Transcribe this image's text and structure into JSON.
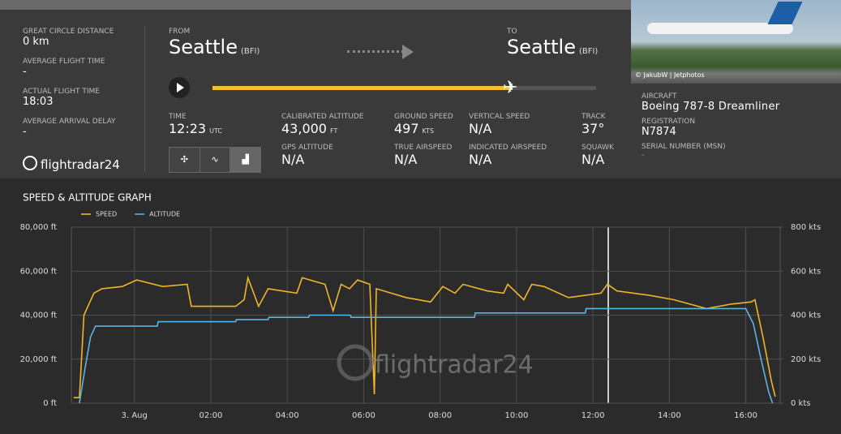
{
  "summary": [
    {
      "label": "GREAT CIRCLE DISTANCE",
      "value": "0 km"
    },
    {
      "label": "AVERAGE FLIGHT TIME",
      "value": "-"
    },
    {
      "label": "ACTUAL FLIGHT TIME",
      "value": "18:03"
    },
    {
      "label": "AVERAGE ARRIVAL DELAY",
      "value": "-"
    }
  ],
  "logo": "flightradar24",
  "route": {
    "from_label": "FROM",
    "from_city": "Seattle",
    "from_code": "(BFI)",
    "to_label": "TO",
    "to_city": "Seattle",
    "to_code": "(BFI)"
  },
  "stats": [
    {
      "label": "TIME",
      "value": "12:23",
      "unit": "UTC"
    },
    {
      "label": "CALIBRATED ALTITUDE",
      "value": "43,000",
      "unit": "FT"
    },
    {
      "label": "GROUND SPEED",
      "value": "497",
      "unit": "KTS"
    },
    {
      "label": "VERTICAL SPEED",
      "value": "N/A"
    },
    {
      "label": "TRACK",
      "value": "37°"
    },
    {
      "label": "GPS ALTITUDE",
      "value": "N/A"
    },
    {
      "label": "TRUE AIRSPEED",
      "value": "N/A"
    },
    {
      "label": "INDICATED AIRSPEED",
      "value": "N/A"
    },
    {
      "label": "SQUAWK",
      "value": "N/A"
    }
  ],
  "aircraft": {
    "photo_credit": "© JakubW | Jetphotos",
    "items": [
      {
        "label": "AIRCRAFT",
        "value": "Boeing 787-8 Dreamliner"
      },
      {
        "label": "REGISTRATION",
        "value": "N7874"
      },
      {
        "label": "SERIAL NUMBER (MSN)",
        "value": "-"
      }
    ]
  },
  "chart_data": {
    "type": "line",
    "title": "SPEED & ALTITUDE GRAPH",
    "watermark": "flightradar24",
    "grid": true,
    "xlim": [
      -1.65,
      16.9
    ],
    "xticks": [
      {
        "value": 0,
        "label": "3. Aug"
      },
      {
        "value": 2,
        "label": "02:00"
      },
      {
        "value": 4,
        "label": "04:00"
      },
      {
        "value": 6,
        "label": "06:00"
      },
      {
        "value": 8,
        "label": "08:00"
      },
      {
        "value": 10,
        "label": "10:00"
      },
      {
        "value": 12,
        "label": "12:00"
      },
      {
        "value": 14,
        "label": "14:00"
      },
      {
        "value": 16,
        "label": "16:00"
      }
    ],
    "ylim": [
      0,
      80000
    ],
    "yticks": [
      {
        "value": 0,
        "label": "0 ft"
      },
      {
        "value": 20000,
        "label": "20,000 ft"
      },
      {
        "value": 40000,
        "label": "40,000 ft"
      },
      {
        "value": 60000,
        "label": "60,000 ft"
      },
      {
        "value": 80000,
        "label": "80,000 ft"
      }
    ],
    "y2lim": [
      0,
      800
    ],
    "y2ticks": [
      {
        "value": 0,
        "label": "0 kts"
      },
      {
        "value": 200,
        "label": "200 kts"
      },
      {
        "value": 400,
        "label": "400 kts"
      },
      {
        "value": 600,
        "label": "600 kts"
      },
      {
        "value": 800,
        "label": "800 kts"
      }
    ],
    "series": [
      {
        "name": "SPEED",
        "color": "#f0b429",
        "axis": "y2",
        "x": [
          -1.59,
          -1.44,
          -1.32,
          -1.06,
          -0.85,
          -0.32,
          0.06,
          0.74,
          1.38,
          1.49,
          2.65,
          2.87,
          2.97,
          3.25,
          3.5,
          4.25,
          4.39,
          4.99,
          5.2,
          5.41,
          5.63,
          5.84,
          6.16,
          6.28,
          6.33,
          7.11,
          7.75,
          8.07,
          8.39,
          8.6,
          9.24,
          9.66,
          9.77,
          10.19,
          10.4,
          10.72,
          11.36,
          12.21,
          12.38,
          12.63,
          13.48,
          14.12,
          14.97,
          15.61,
          16.14,
          16.24,
          16.45,
          16.67,
          16.77
        ],
        "values": [
          25,
          25,
          400,
          500,
          520,
          530,
          560,
          530,
          540,
          440,
          440,
          470,
          570,
          440,
          520,
          500,
          570,
          540,
          420,
          540,
          520,
          560,
          540,
          40,
          520,
          480,
          460,
          530,
          500,
          540,
          510,
          500,
          540,
          470,
          540,
          530,
          480,
          500,
          540,
          510,
          490,
          470,
          430,
          450,
          460,
          470,
          300,
          100,
          30
        ]
      },
      {
        "name": "ALTITUDE",
        "color": "#5ab4e5",
        "axis": "y",
        "x": [
          -1.44,
          -1.3,
          -1.15,
          -1.02,
          0.6,
          0.62,
          2.65,
          2.67,
          3.5,
          3.52,
          4.56,
          4.58,
          5.65,
          5.67,
          8.9,
          8.92,
          11.8,
          11.82,
          16.0,
          16.2,
          16.4,
          16.6,
          16.7
        ],
        "values": [
          0,
          15000,
          30000,
          35000,
          35000,
          37000,
          37000,
          38000,
          38000,
          39000,
          39000,
          40000,
          40000,
          39000,
          39000,
          41000,
          41000,
          43000,
          43000,
          36000,
          20000,
          5000,
          0
        ]
      }
    ]
  }
}
